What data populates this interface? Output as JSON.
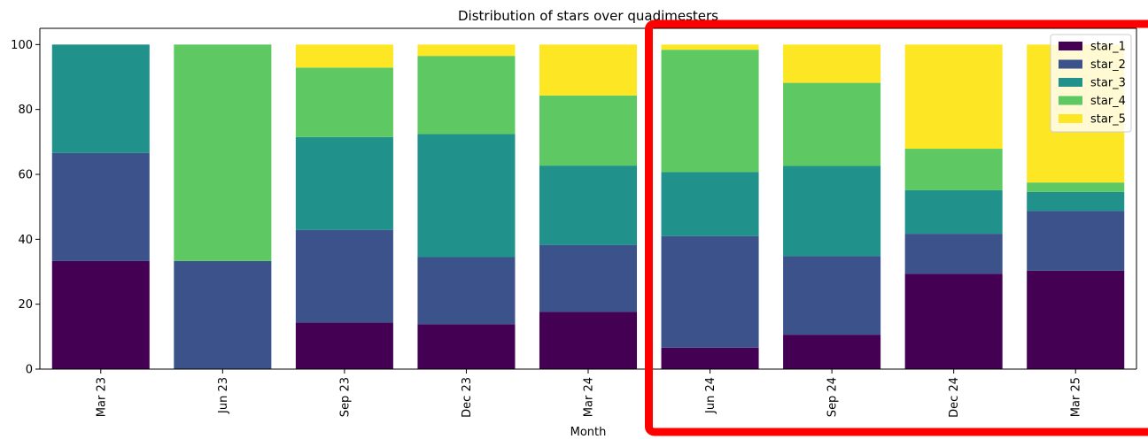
{
  "chart_data": {
    "type": "bar",
    "stacked": true,
    "title": "Distribution of stars over quadimesters",
    "xlabel": "Month",
    "ylabel": "",
    "ylim": [
      0,
      105
    ],
    "yticks": [
      0,
      20,
      40,
      60,
      80,
      100
    ],
    "categories": [
      "Mar 23",
      "Jun 23",
      "Sep 23",
      "Dec 23",
      "Mar 24",
      "Jun 24",
      "Sep 24",
      "Dec 24",
      "Mar 25"
    ],
    "series": [
      {
        "name": "star_1",
        "color": "#440154",
        "values": [
          33.3,
          0.0,
          14.3,
          13.8,
          17.6,
          6.6,
          10.6,
          29.4,
          30.3
        ]
      },
      {
        "name": "star_2",
        "color": "#3b528b",
        "values": [
          33.3,
          33.3,
          28.6,
          20.7,
          20.6,
          34.4,
          24.2,
          12.3,
          18.4
        ]
      },
      {
        "name": "star_3",
        "color": "#21918c",
        "values": [
          33.4,
          0.0,
          28.6,
          37.9,
          24.5,
          19.7,
          27.8,
          13.4,
          5.9
        ]
      },
      {
        "name": "star_4",
        "color": "#5ec962",
        "values": [
          0.0,
          66.7,
          21.4,
          24.1,
          21.6,
          37.7,
          25.6,
          12.8,
          2.9
        ]
      },
      {
        "name": "star_5",
        "color": "#fde725",
        "values": [
          0.0,
          0.0,
          7.1,
          3.5,
          15.7,
          1.6,
          11.8,
          32.1,
          42.5
        ]
      }
    ],
    "grid": false,
    "legend_position": "top-right",
    "highlight": {
      "color": "#ff0000",
      "categories": [
        "Jun 24",
        "Sep 24",
        "Dec 24",
        "Mar 25"
      ]
    }
  }
}
